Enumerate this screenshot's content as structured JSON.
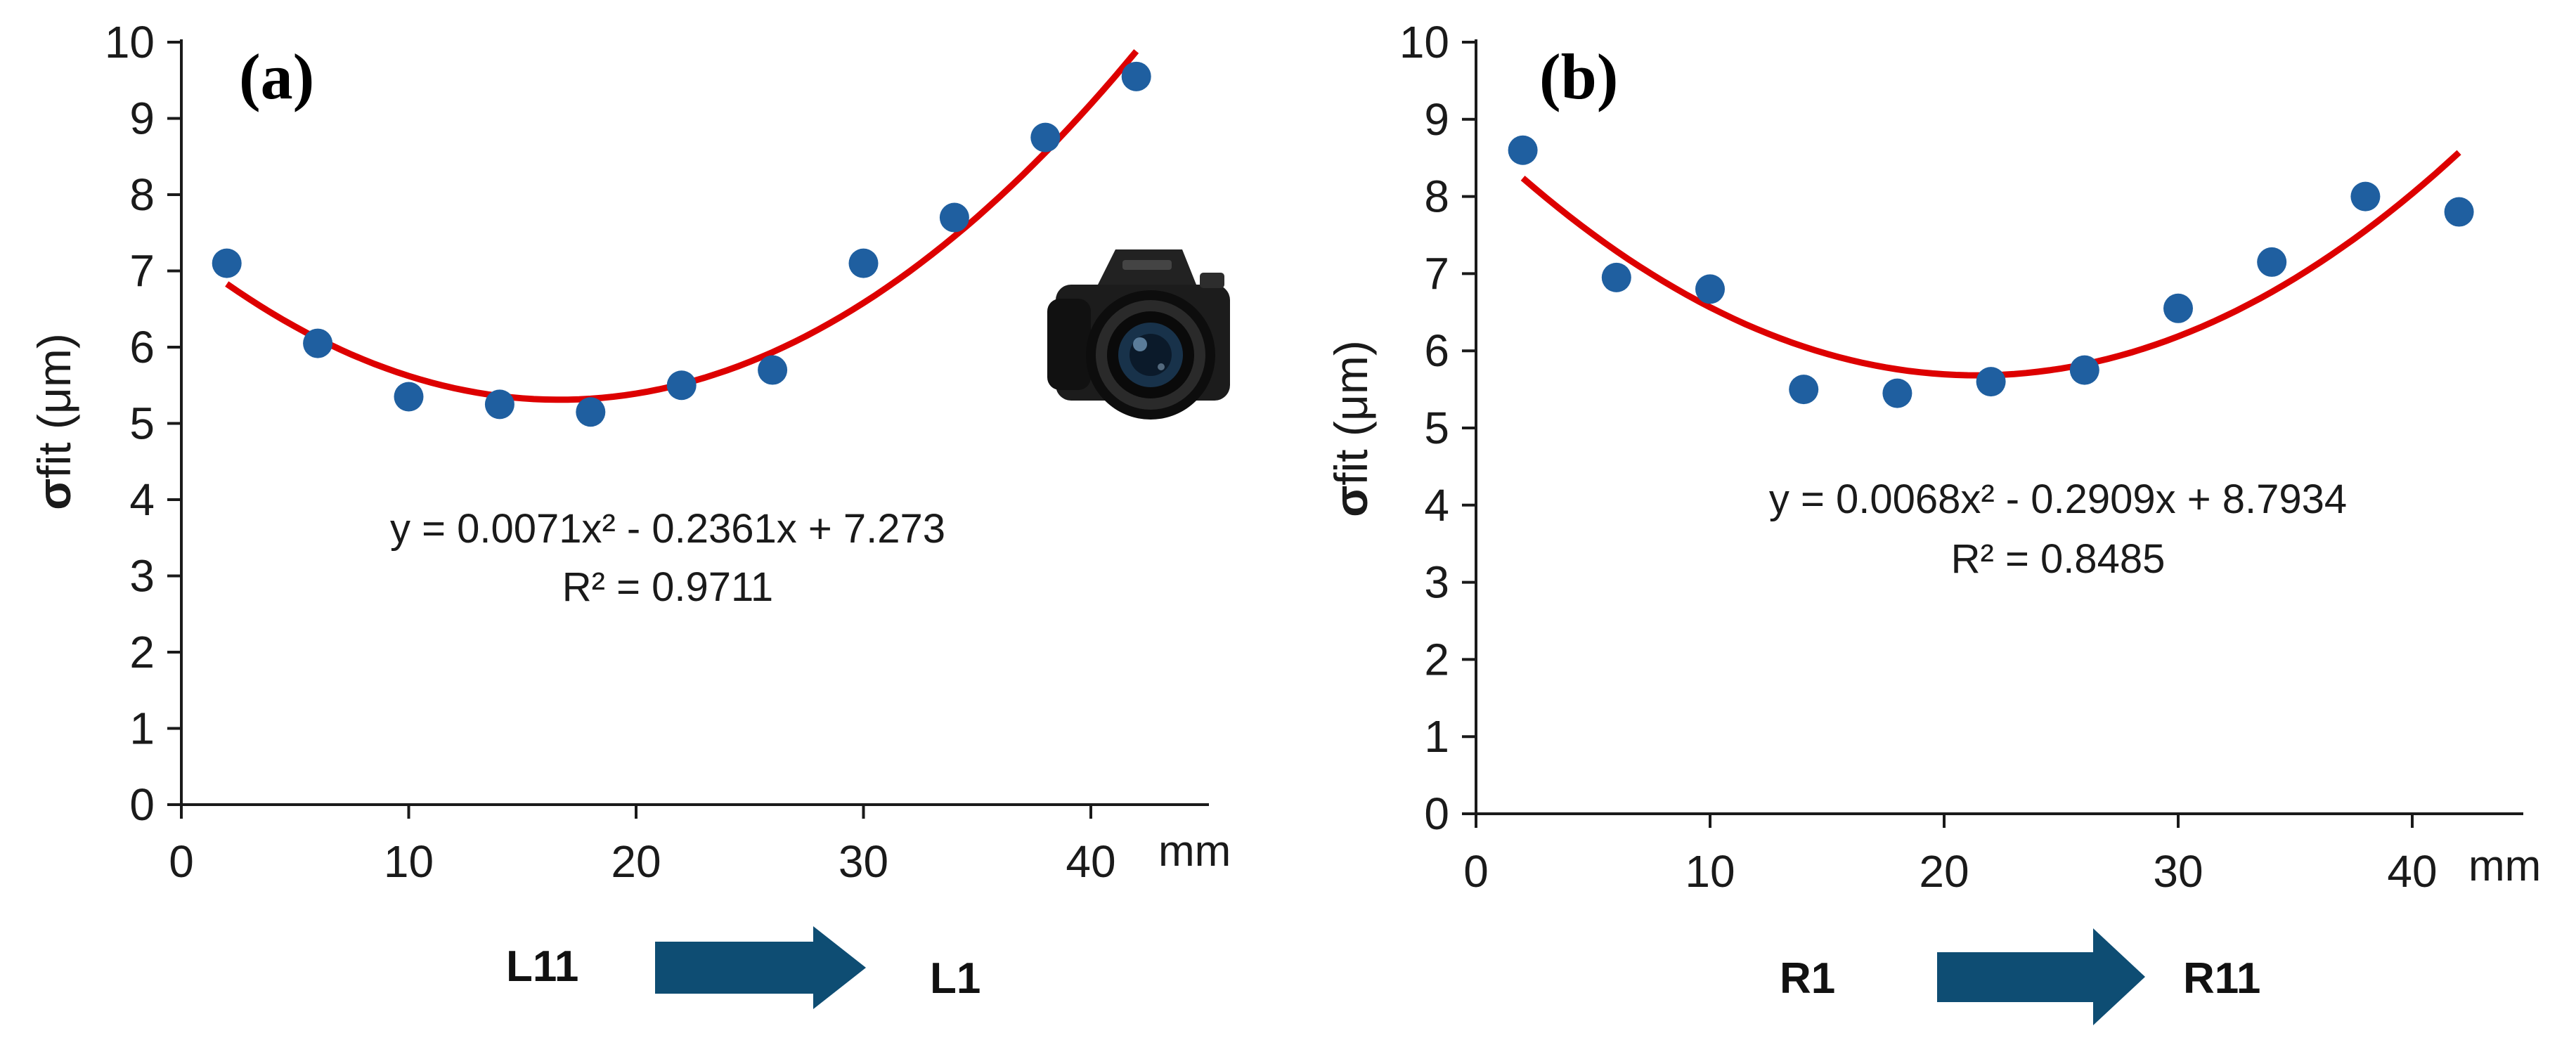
{
  "colors": {
    "points": "#1f5fa0",
    "fit": "#dd0000",
    "arrow": "#0e4d73",
    "axis": "#1a1a1a"
  },
  "chart_data": [
    {
      "type": "scatter",
      "panel_label": "(a)",
      "ylabel_symbol": "σ",
      "ylabel_rest": "fit (μm)",
      "x_unit": "mm",
      "xlim": [
        0,
        45
      ],
      "ylim": [
        0,
        10
      ],
      "xticks": [
        0,
        10,
        20,
        30,
        40
      ],
      "yticks": [
        0,
        1,
        2,
        3,
        4,
        5,
        6,
        7,
        8,
        9,
        10
      ],
      "x": [
        2,
        6,
        10,
        14,
        18,
        22,
        26,
        30,
        34,
        38,
        42
      ],
      "y": [
        7.1,
        6.05,
        5.35,
        5.25,
        5.15,
        5.5,
        5.7,
        7.1,
        7.7,
        8.75,
        9.55
      ],
      "fit": {
        "a": 0.0071,
        "b": -0.2361,
        "c": 7.273,
        "x_from": 2,
        "x_to": 42
      },
      "equation": "y = 0.0071x² - 0.2361x + 7.273",
      "r2": "R² = 0.9711",
      "camera_icon": "dslr-camera-icon",
      "direction": {
        "from": "L11",
        "to": "L1"
      }
    },
    {
      "type": "scatter",
      "panel_label": "(b)",
      "ylabel_symbol": "σ",
      "ylabel_rest": "fit (μm)",
      "x_unit": "mm",
      "xlim": [
        0,
        45
      ],
      "ylim": [
        0,
        10
      ],
      "xticks": [
        0,
        10,
        20,
        30,
        40
      ],
      "yticks": [
        0,
        1,
        2,
        3,
        4,
        5,
        6,
        7,
        8,
        9,
        10
      ],
      "x": [
        2,
        6,
        10,
        14,
        18,
        22,
        26,
        30,
        34,
        38,
        42
      ],
      "y": [
        8.6,
        6.95,
        6.8,
        5.5,
        5.45,
        5.6,
        5.75,
        6.55,
        7.15,
        8.0,
        7.8
      ],
      "fit": {
        "a": 0.0068,
        "b": -0.2909,
        "c": 8.7934,
        "x_from": 2,
        "x_to": 42
      },
      "equation": "y = 0.0068x² - 0.2909x + 8.7934",
      "r2": "R² = 0.8485",
      "direction": {
        "from": "R1",
        "to": "R11"
      }
    }
  ]
}
